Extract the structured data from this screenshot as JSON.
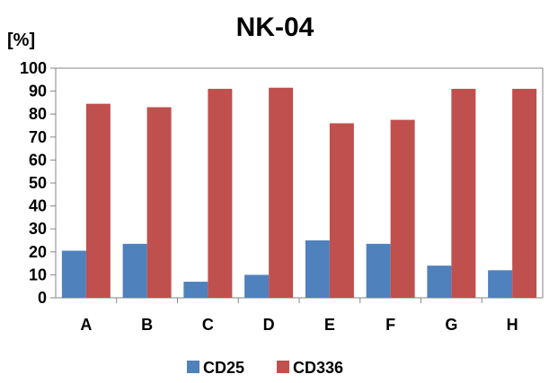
{
  "chart_data": {
    "type": "bar",
    "title": "NK-04",
    "ylabel": "[%]",
    "xlabel": "",
    "ylim": [
      0,
      100
    ],
    "yticks": [
      0,
      10,
      20,
      30,
      40,
      50,
      60,
      70,
      80,
      90,
      100
    ],
    "grid": false,
    "legend_position": "bottom",
    "categories": [
      "A",
      "B",
      "C",
      "D",
      "E",
      "F",
      "G",
      "H"
    ],
    "series": [
      {
        "name": "CD25",
        "color": "#4F81BD",
        "values": [
          20.5,
          23.5,
          7,
          10,
          25,
          23.5,
          14,
          12
        ]
      },
      {
        "name": "CD336",
        "color": "#C0504D",
        "values": [
          84.5,
          83,
          91,
          91.5,
          76,
          77.5,
          91,
          91
        ]
      }
    ]
  }
}
